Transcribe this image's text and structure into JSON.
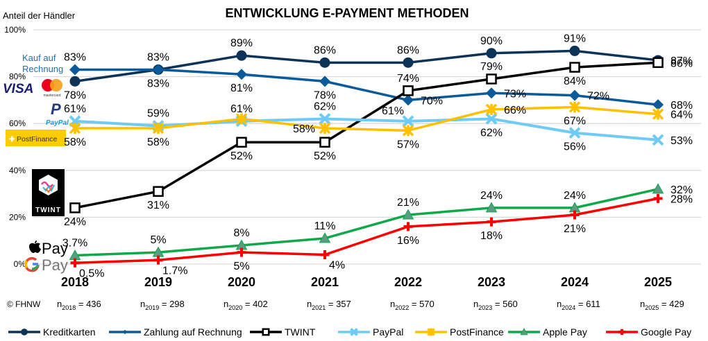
{
  "chart_data": {
    "type": "line",
    "title": "ENTWICKLUNG E-PAYMENT METHODEN",
    "ylabel": "Anteil der Händler",
    "xlabel": "",
    "ylim": [
      0,
      100
    ],
    "yticks": [
      "0%",
      "20%",
      "40%",
      "60%",
      "80%",
      "100%"
    ],
    "grid": true,
    "categories": [
      "2018",
      "2019",
      "2020",
      "2021",
      "2022",
      "2023",
      "2024",
      "2025"
    ],
    "legend_position": "bottom",
    "copyright": "© FHNW",
    "sample_sizes": [
      {
        "year": "2018",
        "n": "436"
      },
      {
        "year": "2019",
        "n": "298"
      },
      {
        "year": "2020",
        "n": "402"
      },
      {
        "year": "2021",
        "n": "357"
      },
      {
        "year": "2022",
        "n": "570"
      },
      {
        "year": "2023",
        "n": "560"
      },
      {
        "year": "2024",
        "n": "611"
      },
      {
        "year": "2025",
        "n": "429"
      }
    ],
    "series": [
      {
        "name": "Kreditkarten",
        "color": "#0d3358",
        "marker": "circle",
        "values": [
          78,
          83,
          89,
          86,
          86,
          90,
          91,
          87
        ],
        "labels": [
          "78%",
          "83%",
          "89%",
          "86%",
          "86%",
          "90%",
          "91%",
          "87%"
        ],
        "label_pos": [
          "below",
          "below",
          "above",
          "above",
          "above",
          "above",
          "above",
          "right"
        ]
      },
      {
        "name": "Zahlung auf Rechnung",
        "color": "#0b5a9a",
        "marker": "diamond",
        "values": [
          83,
          83,
          81,
          78,
          70,
          73,
          72,
          68
        ],
        "labels": [
          "83%",
          "83%",
          "81%",
          "78%",
          "70%",
          "73%",
          "72%",
          "68%"
        ],
        "label_pos": [
          "above",
          "above",
          "below",
          "below",
          "right",
          "right",
          "right",
          "right"
        ]
      },
      {
        "name": "TWINT",
        "color": "#000000",
        "marker": "square",
        "values": [
          24,
          31,
          52,
          52,
          74,
          79,
          84,
          86
        ],
        "labels": [
          "24%",
          "31%",
          "52%",
          "52%",
          "74%",
          "79%",
          "84%",
          "86%"
        ],
        "label_pos": [
          "below",
          "below",
          "below",
          "below",
          "above",
          "above",
          "below",
          "right"
        ]
      },
      {
        "name": "PayPal",
        "color": "#6ecbf5",
        "marker": "x",
        "values": [
          61,
          59,
          61,
          62,
          61,
          62,
          56,
          53
        ],
        "labels": [
          "61%",
          "59%",
          "61%",
          "62%",
          "61%",
          "62%",
          "56%",
          "53%"
        ],
        "label_pos": [
          "above",
          "above",
          "above",
          "above",
          "above-left",
          "below",
          "below",
          "right"
        ]
      },
      {
        "name": "PostFinance",
        "color": "#ffc000",
        "marker": "star",
        "values": [
          58,
          58,
          62,
          58,
          57,
          66,
          67,
          64
        ],
        "labels": [
          "58%",
          "58%",
          "",
          "58%",
          "57%",
          "66%",
          "67%",
          "64%"
        ],
        "label_pos": [
          "below",
          "below",
          "none",
          "left",
          "below",
          "right",
          "below",
          "right"
        ]
      },
      {
        "name": "Apple Pay",
        "color": "#11a84a",
        "marker": "triangle",
        "values": [
          3.7,
          5,
          8,
          11,
          21,
          24,
          24,
          32
        ],
        "labels": [
          "3.7%",
          "5%",
          "8%",
          "11%",
          "21%",
          "24%",
          "24%",
          "32%"
        ],
        "label_pos": [
          "above",
          "above",
          "above",
          "above",
          "above",
          "above",
          "above",
          "right"
        ]
      },
      {
        "name": "Google Pay",
        "color": "#ff0000",
        "marker": "plus",
        "values": [
          0.5,
          1.7,
          5,
          4,
          16,
          18,
          21,
          28
        ],
        "labels": [
          "0.5%",
          "1.7%",
          "5%",
          "4%",
          "16%",
          "18%",
          "21%",
          "28%"
        ],
        "label_pos": [
          "below-right",
          "below-right",
          "below",
          "below-right",
          "below",
          "below",
          "below",
          "right"
        ]
      }
    ]
  },
  "logos": {
    "rechnung": "Kauf auf\nRechnung",
    "rechnung_line1": "Kauf auf",
    "rechnung_line2": "Rechnung",
    "visa": "VISA",
    "mastercard": "mastercard",
    "paypal": "PayPal",
    "postfinance": "PostFinance",
    "twint": "TWINT",
    "applepay": "Pay",
    "googlepay": "Pay"
  }
}
